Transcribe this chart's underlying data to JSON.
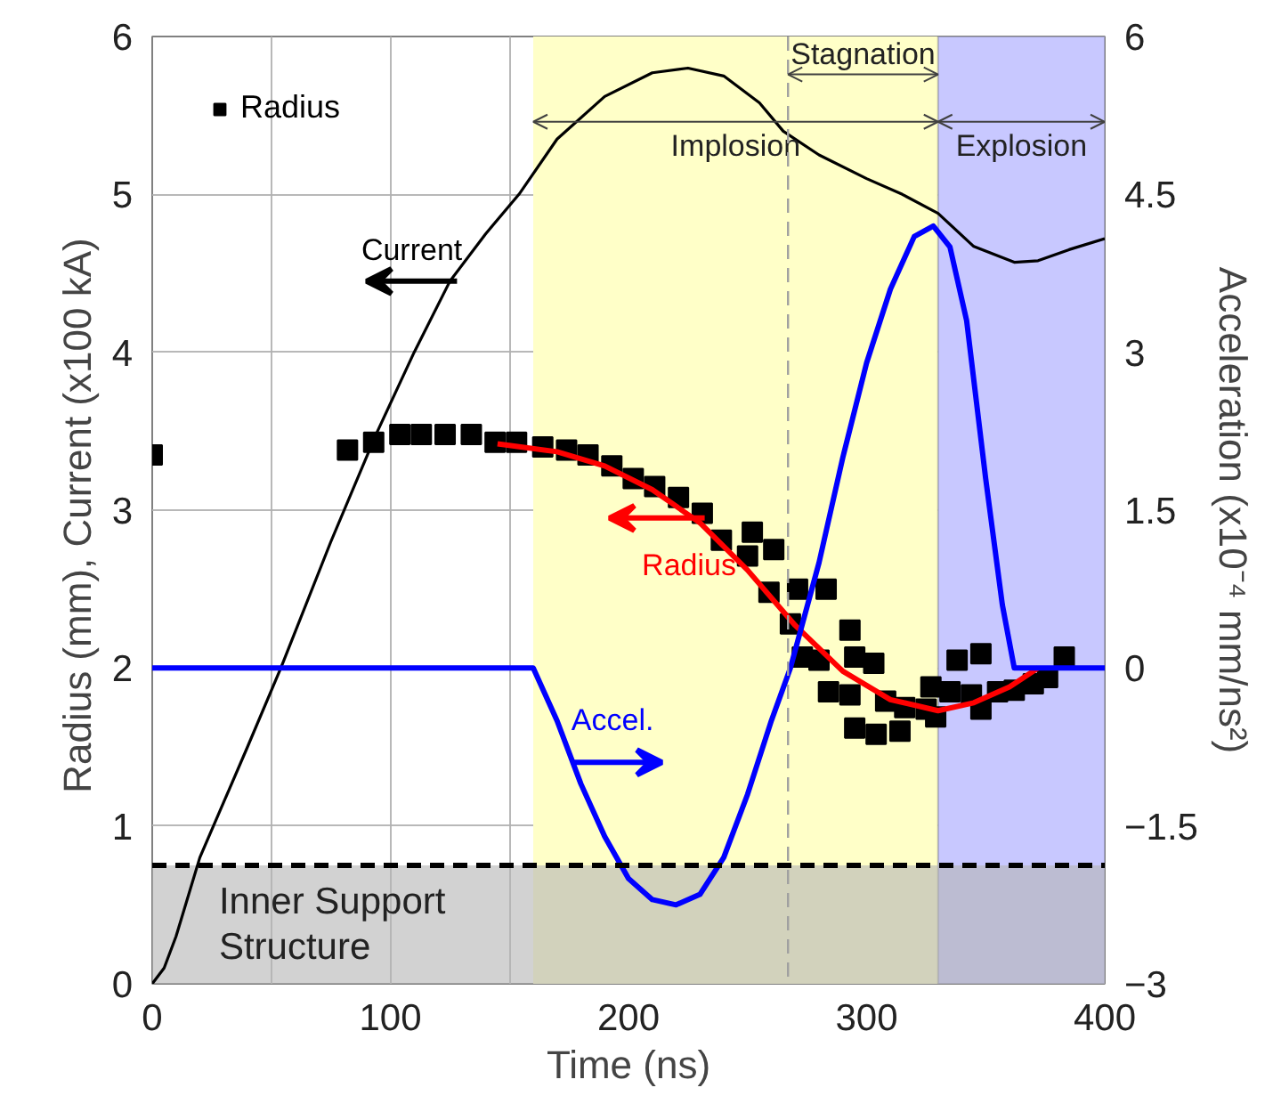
{
  "chart_data": {
    "type": "line",
    "xlabel": "Time (ns)",
    "ylabel": "Radius (mm),  Current (x100 kA)",
    "y2label": "Acceleration (x10⁻⁴ mm/ns²)",
    "xlim": [
      0,
      400
    ],
    "xticks": [
      0,
      {
        "value": 50,
        "label": null
      },
      100,
      {
        "value": 150,
        "label": null
      },
      200,
      {
        "value": 250,
        "label": null
      },
      300,
      {
        "value": 350,
        "label": null
      },
      400
    ],
    "ylim": [
      0,
      6
    ],
    "yticks": [
      0,
      1,
      2,
      3,
      4,
      5,
      6
    ],
    "y2lim": [
      -3,
      6
    ],
    "y2ticks": [
      -3,
      -1.5,
      0,
      1.5,
      3,
      4.5,
      6
    ],
    "grid": true,
    "legend": "top left",
    "series": [
      {
        "name": "Radius",
        "type": "scatter",
        "marker": "square",
        "color": "#000000",
        "x": [
          0,
          82,
          93,
          104,
          113,
          123,
          134,
          144,
          153,
          164,
          174,
          183,
          193,
          202,
          211,
          221,
          231,
          239,
          250,
          261,
          252,
          259,
          271,
          283,
          268,
          293,
          273,
          280,
          295,
          303,
          284,
          293,
          308,
          316,
          325,
          329,
          295,
          304,
          314,
          327,
          335,
          338,
          348,
          344,
          348,
          355,
          362,
          370,
          376,
          383
        ],
        "values": [
          3.35,
          3.38,
          3.43,
          3.48,
          3.48,
          3.48,
          3.48,
          3.43,
          3.43,
          3.4,
          3.38,
          3.35,
          3.28,
          3.2,
          3.15,
          3.08,
          2.98,
          2.81,
          2.71,
          2.75,
          2.86,
          2.48,
          2.5,
          2.5,
          2.28,
          2.24,
          2.07,
          2.05,
          2.07,
          2.03,
          1.85,
          1.83,
          1.79,
          1.75,
          1.74,
          1.69,
          1.62,
          1.58,
          1.6,
          1.88,
          1.85,
          2.05,
          2.09,
          1.83,
          1.74,
          1.85,
          1.86,
          1.9,
          1.94,
          2.07
        ]
      },
      {
        "name": "Current",
        "color": "#000000",
        "x": [
          0,
          5,
          10,
          20,
          40,
          54,
          75,
          94,
          110,
          125,
          140,
          154,
          170,
          190,
          210,
          225,
          240,
          255,
          265,
          280,
          300,
          315,
          330,
          345,
          362,
          372,
          385,
          400
        ],
        "values": [
          0,
          0.1,
          0.3,
          0.8,
          1.5,
          2.0,
          2.8,
          3.48,
          4.0,
          4.45,
          4.75,
          5.0,
          5.35,
          5.62,
          5.77,
          5.8,
          5.75,
          5.58,
          5.4,
          5.25,
          5.1,
          5.0,
          4.88,
          4.67,
          4.57,
          4.58,
          4.65,
          4.72
        ]
      },
      {
        "name": "Radius",
        "color": "#ff0000",
        "x": [
          145,
          170,
          190,
          210,
          230,
          250,
          270,
          290,
          310,
          330,
          345,
          360,
          372
        ],
        "values": [
          3.42,
          3.37,
          3.28,
          3.13,
          2.92,
          2.62,
          2.27,
          1.98,
          1.8,
          1.73,
          1.78,
          1.88,
          2.0
        ]
      },
      {
        "name": "Accel.",
        "color": "#0000ff",
        "axis": "y2",
        "x": [
          0,
          160,
          170,
          180,
          190,
          200,
          210,
          220,
          230,
          240,
          250,
          260,
          268,
          280,
          290,
          300,
          310,
          320,
          328,
          335,
          342,
          350,
          357,
          362,
          400
        ],
        "values": [
          0,
          0,
          -0.5,
          -1.1,
          -1.6,
          -2.0,
          -2.2,
          -2.25,
          -2.15,
          -1.8,
          -1.2,
          -0.5,
          0,
          1.0,
          2.0,
          2.9,
          3.6,
          4.1,
          4.2,
          4.0,
          3.3,
          1.8,
          0.6,
          0,
          0
        ]
      }
    ],
    "bands": [
      {
        "axis": "x",
        "from": 160,
        "to": 330,
        "label": "Implosion",
        "color": "#ffffc8"
      },
      {
        "axis": "x",
        "from": 330,
        "to": 400,
        "label": "Explosion",
        "color": "#c8c8ff"
      },
      {
        "axis": "y",
        "from": 0,
        "to": 0.75,
        "label": "Inner Support Structure",
        "color": "#b4b4b4"
      }
    ],
    "ref_lines": [
      {
        "axis": "y",
        "value": 0.75,
        "color": "#000000",
        "line_style": "dashed"
      },
      {
        "axis": "x",
        "value": 267,
        "label": "Stagnation",
        "color": "#a0a0a0",
        "line_style": "dashed"
      }
    ]
  }
}
